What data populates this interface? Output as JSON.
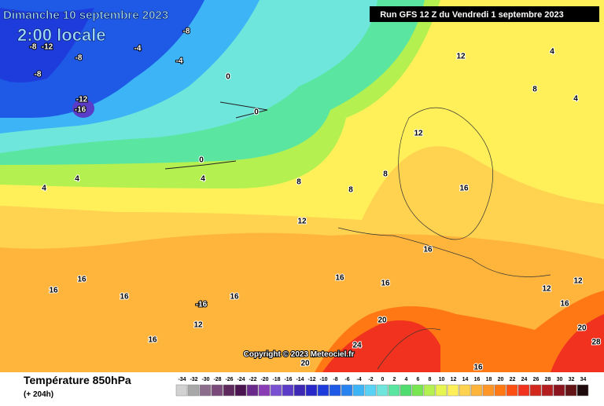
{
  "header": {
    "title": "Dimanche 10 septembre 2023",
    "time": "2:00 locale",
    "run": "Run GFS 12 Z du Vendredi 1 septembre 2023",
    "copyright": "Copyright © 2023 Meteociel.fr"
  },
  "footer": {
    "variable": "Température 850hPa",
    "lead": "(+ 204h)"
  },
  "scale": {
    "values": [
      -34,
      -32,
      -30,
      -28,
      -26,
      -24,
      -22,
      -20,
      -18,
      -16,
      -14,
      -12,
      -10,
      -8,
      -6,
      -4,
      -2,
      0,
      2,
      4,
      6,
      8,
      10,
      12,
      14,
      16,
      18,
      20,
      22,
      24,
      26,
      28,
      30,
      32,
      34
    ],
    "colors": [
      "#d2d2d2",
      "#a8a8a8",
      "#8c6e8c",
      "#7a4a7a",
      "#5e2a5e",
      "#4a1450",
      "#6a2a8c",
      "#8a3cb4",
      "#7a50d2",
      "#5a3cc8",
      "#3c28b4",
      "#2828c8",
      "#1e3cdc",
      "#1e5ae6",
      "#2882f0",
      "#3cb4f5",
      "#5ad2f5",
      "#6ee6dc",
      "#5ae6a0",
      "#50dc6e",
      "#78e650",
      "#b4f050",
      "#e6f550",
      "#fff05a",
      "#ffd250",
      "#ffb43c",
      "#ff9628",
      "#ff7814",
      "#ff5014",
      "#f0321e",
      "#d2281e",
      "#b41e1e",
      "#8c141e",
      "#641414",
      "#1e0a0a"
    ]
  },
  "map_labels": [
    -8,
    -8,
    -12,
    -8,
    -12,
    -16,
    -4,
    -8,
    -4,
    0,
    0,
    0,
    4,
    4,
    4,
    8,
    8,
    12,
    12,
    8,
    12,
    16,
    16,
    16,
    16,
    16,
    -16,
    12,
    16,
    16,
    16,
    16,
    20,
    24,
    20,
    16,
    20,
    28,
    12,
    12,
    4,
    4,
    8,
    16
  ]
}
